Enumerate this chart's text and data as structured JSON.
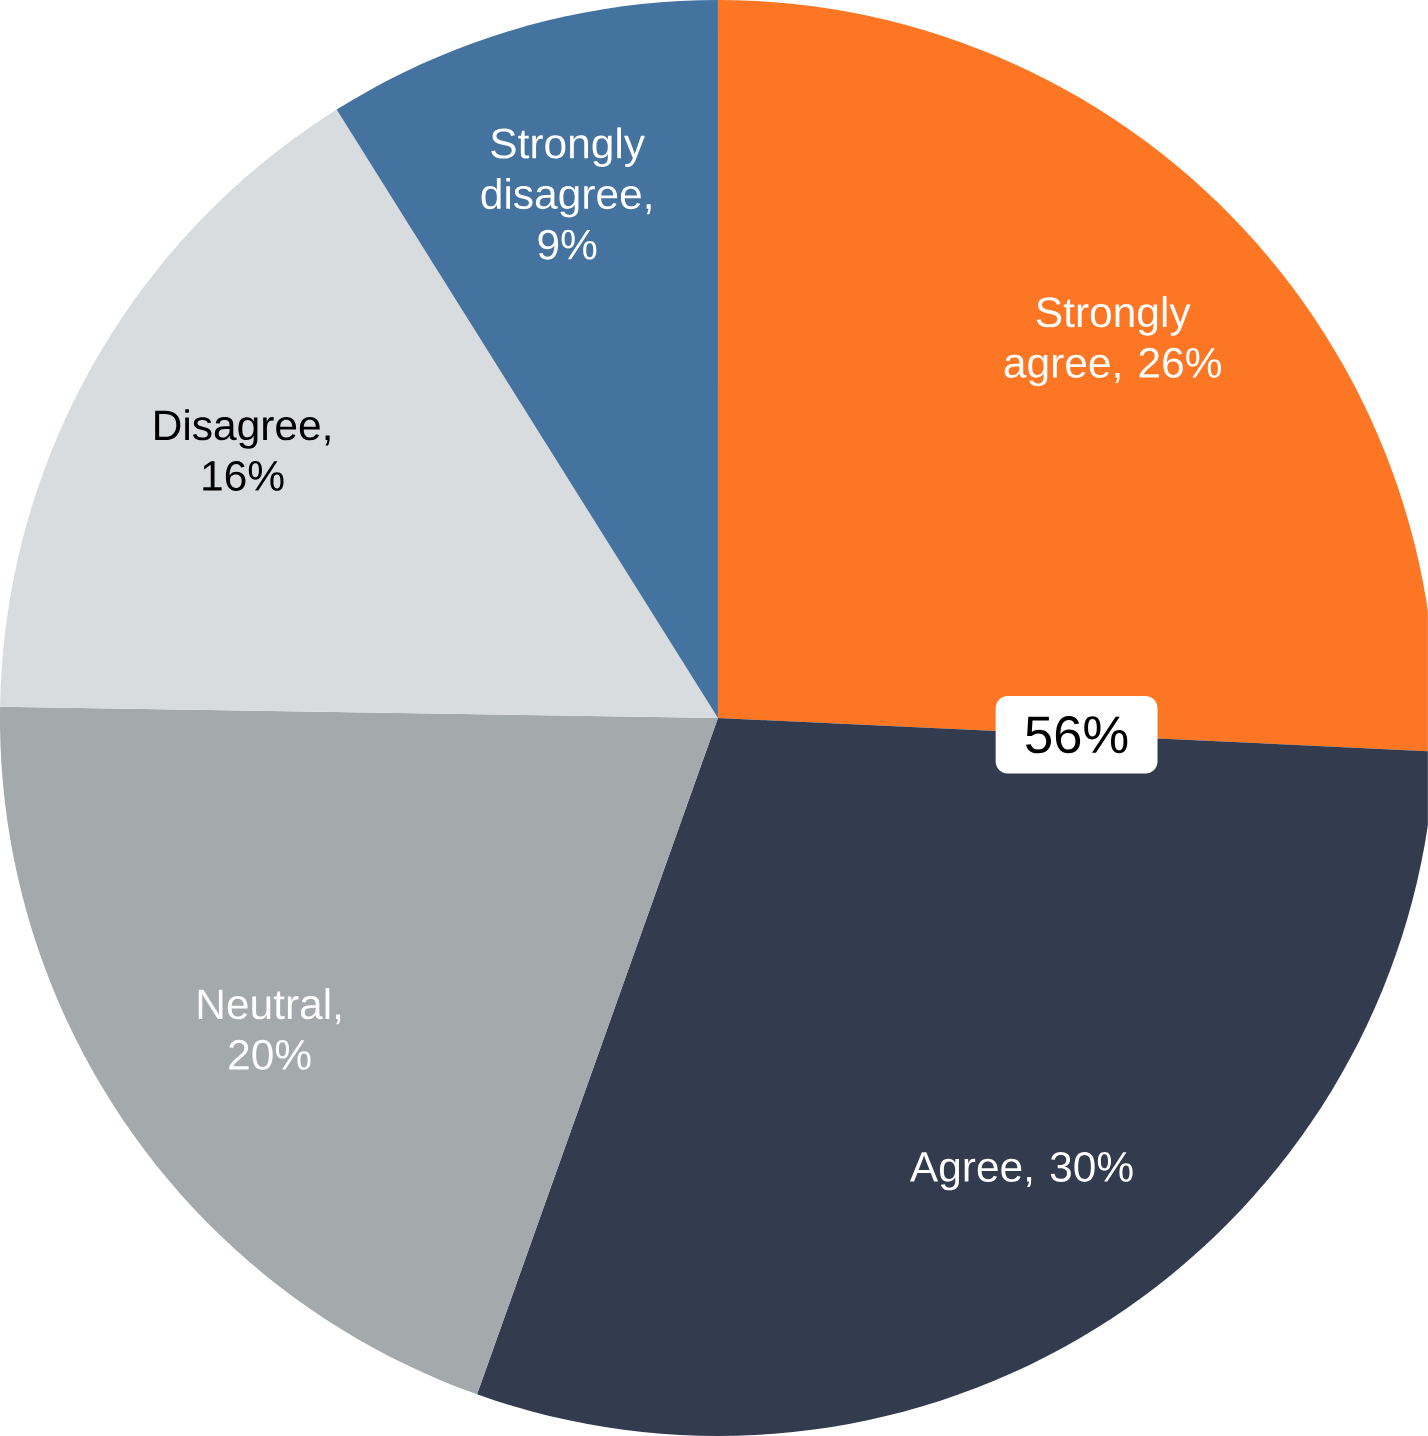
{
  "chart_data": {
    "type": "pie",
    "categories": [
      "Strongly agree, 26%",
      "Agree, 30%",
      "Neutral, 20%",
      "Disagree, 16%",
      "Strongly disagree, 9%"
    ],
    "values": [
      26,
      30,
      20,
      16,
      9
    ],
    "colors": [
      "#fd7624",
      "#333b4f",
      "#a4a9ac",
      "#d9dcde",
      "#44739f"
    ],
    "annotations": [
      "56%"
    ]
  }
}
